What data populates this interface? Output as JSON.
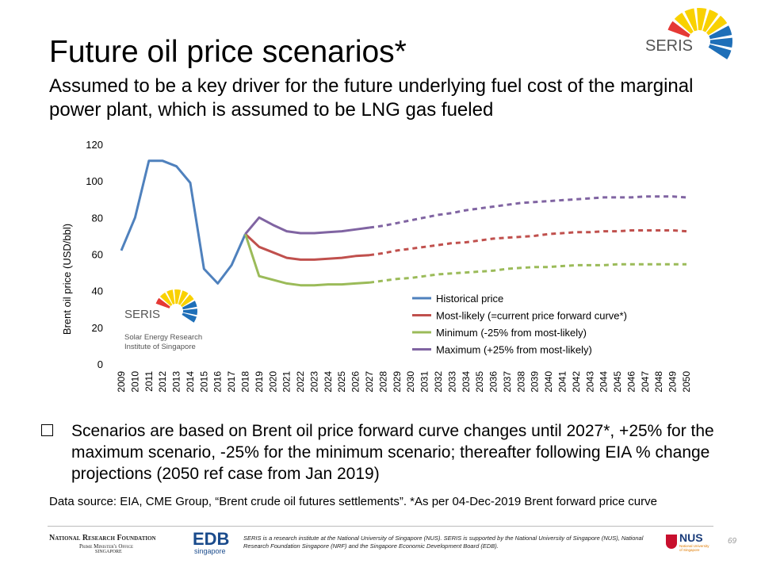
{
  "title": "Future oil price scenarios*",
  "subtitle": "Assumed to be a key driver for the future underlying fuel cost of the marginal power plant, which is assumed to be LNG gas fueled",
  "logo": {
    "name": "SERIS",
    "caption": "Solar Energy Research Institute of Singapore"
  },
  "chart_data": {
    "type": "line",
    "y_label": "Brent oil price (USD/bbl)",
    "ylim": [
      0,
      120
    ],
    "yticks": [
      0,
      20,
      40,
      60,
      80,
      100,
      120
    ],
    "dash_from": "2027",
    "legend": "right",
    "categories": [
      "2009",
      "2010",
      "2011",
      "2012",
      "2013",
      "2014",
      "2015",
      "2016",
      "2017",
      "2018",
      "2019",
      "2020",
      "2021",
      "2022",
      "2023",
      "2024",
      "2025",
      "2026",
      "2027",
      "2028",
      "2029",
      "2030",
      "2031",
      "2032",
      "2033",
      "2034",
      "2035",
      "2036",
      "2037",
      "2038",
      "2039",
      "2040",
      "2041",
      "2042",
      "2043",
      "2044",
      "2045",
      "2046",
      "2047",
      "2048",
      "2049",
      "2050"
    ],
    "series": [
      {
        "name": "Historical price",
        "color": "#4f81bd",
        "values": [
          62,
          80,
          111,
          111,
          108,
          99,
          52,
          44,
          54,
          71,
          null,
          null,
          null,
          null,
          null,
          null,
          null,
          null,
          null,
          null,
          null,
          null,
          null,
          null,
          null,
          null,
          null,
          null,
          null,
          null,
          null,
          null,
          null,
          null,
          null,
          null,
          null,
          null,
          null,
          null,
          null,
          null
        ]
      },
      {
        "name": "Most-likely (=current price forward curve*)",
        "color": "#c0504d",
        "values": [
          null,
          null,
          null,
          null,
          null,
          null,
          null,
          null,
          null,
          71,
          64,
          61,
          58,
          57,
          57,
          57.5,
          58,
          59,
          59.5,
          60.5,
          62,
          63,
          64,
          65,
          66,
          66.5,
          67.5,
          68.5,
          69,
          69.5,
          70,
          71,
          71.5,
          72,
          72,
          72.5,
          72.5,
          73,
          73,
          73,
          73,
          72.5
        ]
      },
      {
        "name": "Minimum (-25% from most-likely)",
        "color": "#9bbb59",
        "values": [
          null,
          null,
          null,
          null,
          null,
          null,
          null,
          null,
          null,
          71,
          48,
          46,
          44,
          43,
          43,
          43.5,
          43.5,
          44,
          44.5,
          45.5,
          46.5,
          47,
          48,
          49,
          49.5,
          50,
          50.5,
          51,
          52,
          52.5,
          53,
          53,
          53.5,
          54,
          54,
          54,
          54.5,
          54.5,
          54.5,
          54.5,
          54.5,
          54.5
        ]
      },
      {
        "name": "Maximum (+25% from most-likely)",
        "color": "#8064a2",
        "values": [
          null,
          null,
          null,
          null,
          null,
          null,
          null,
          null,
          null,
          71,
          80,
          76,
          72.5,
          71.5,
          71.5,
          72,
          72.5,
          73.5,
          74.5,
          75.5,
          77,
          78.5,
          80,
          81.5,
          82.5,
          84,
          85,
          86,
          87,
          88,
          88.5,
          89,
          89.5,
          90,
          90.5,
          91,
          91,
          91,
          91.5,
          91.5,
          91.5,
          91
        ]
      }
    ]
  },
  "bullet": "Scenarios are based on Brent oil price forward curve changes until 2027*, +25% for the maximum scenario, -25% for the minimum scenario; thereafter following EIA % change projections (2050 ref case from Jan 2019)",
  "source": "Data source: EIA, CME Group, “Brent crude oil futures settlements”. *As per 04-Dec-2019 Brent forward price curve",
  "footer": {
    "nrf": "National Research Foundation",
    "pmo": "Prime Minister's Office",
    "sg": "Singapore",
    "edb": "EDB",
    "edb_sub": "singapore",
    "note": "SERIS is a research institute at the National University of Singapore (NUS). SERIS is supported by the National University of Singapore (NUS), National Research Foundation Singapore (NRF) and the Singapore Economic Development Board (EDB).",
    "nus": "NUS",
    "nus_sub": "National University of Singapore",
    "page": "69"
  }
}
